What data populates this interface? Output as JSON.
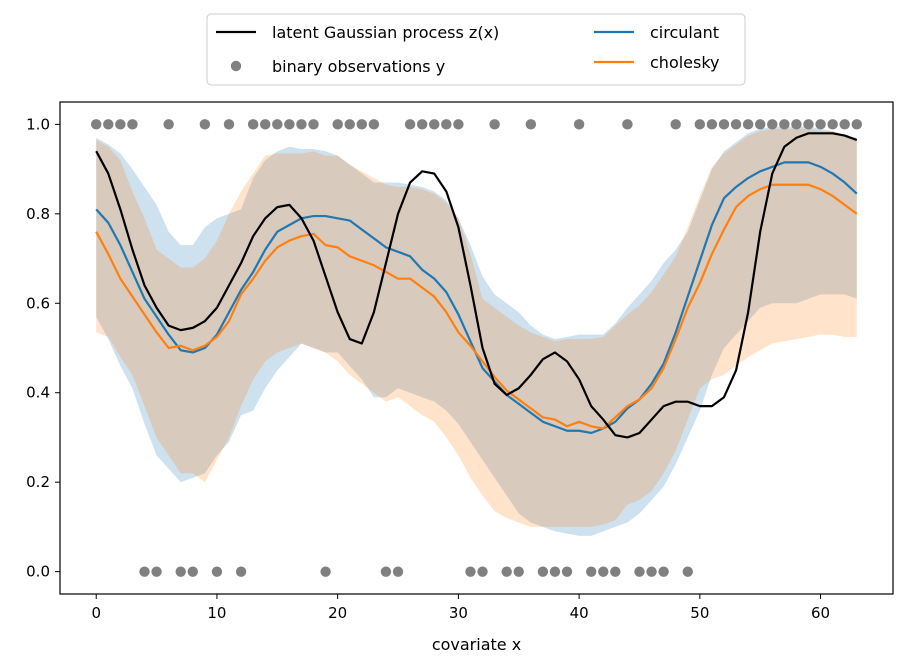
{
  "chart_data": {
    "type": "line",
    "xlabel": "covariate x",
    "ylabel": "",
    "xlim": [
      -3,
      66
    ],
    "ylim": [
      -0.05,
      1.05
    ],
    "xticks": [
      0,
      10,
      20,
      30,
      40,
      50,
      60
    ],
    "yticks": [
      0.0,
      0.2,
      0.4,
      0.6,
      0.8,
      1.0
    ],
    "xtick_labels": [
      "0",
      "10",
      "20",
      "30",
      "40",
      "50",
      "60"
    ],
    "ytick_labels": [
      "0.0",
      "0.2",
      "0.4",
      "0.6",
      "0.8",
      "1.0"
    ],
    "grid": false,
    "legend_position": "top-center",
    "legend": [
      {
        "label": "latent Gaussian process z(x)",
        "kind": "line",
        "series": "latent"
      },
      {
        "label": "binary observations y",
        "kind": "marker",
        "series": "observations"
      },
      {
        "label": "circulant",
        "kind": "line",
        "series": "circulant"
      },
      {
        "label": "cholesky",
        "kind": "line",
        "series": "cholesky"
      }
    ],
    "colors": {
      "latent": "#000000",
      "observations": "#808080",
      "circulant": "#1f77b4",
      "cholesky": "#ff7f0e",
      "circulant_band": "#1f77b4",
      "cholesky_band": "#ff7f0e"
    },
    "x": [
      0,
      1,
      2,
      3,
      4,
      5,
      6,
      7,
      8,
      9,
      10,
      11,
      12,
      13,
      14,
      15,
      16,
      17,
      18,
      19,
      20,
      21,
      22,
      23,
      24,
      25,
      26,
      27,
      28,
      29,
      30,
      31,
      32,
      33,
      34,
      35,
      36,
      37,
      38,
      39,
      40,
      41,
      42,
      43,
      44,
      45,
      46,
      47,
      48,
      49,
      50,
      51,
      52,
      53,
      54,
      55,
      56,
      57,
      58,
      59,
      60,
      61,
      62,
      63
    ],
    "latent": [
      0.94,
      0.89,
      0.81,
      0.72,
      0.64,
      0.59,
      0.55,
      0.54,
      0.545,
      0.56,
      0.59,
      0.64,
      0.69,
      0.75,
      0.79,
      0.815,
      0.82,
      0.79,
      0.74,
      0.66,
      0.58,
      0.52,
      0.51,
      0.58,
      0.69,
      0.8,
      0.87,
      0.895,
      0.89,
      0.85,
      0.77,
      0.64,
      0.5,
      0.42,
      0.395,
      0.41,
      0.44,
      0.475,
      0.49,
      0.47,
      0.43,
      0.37,
      0.34,
      0.305,
      0.3,
      0.31,
      0.34,
      0.37,
      0.38,
      0.38,
      0.37,
      0.37,
      0.39,
      0.45,
      0.58,
      0.76,
      0.89,
      0.95,
      0.97,
      0.98,
      0.98,
      0.98,
      0.975,
      0.965
    ],
    "circulant_mean": [
      0.81,
      0.78,
      0.73,
      0.67,
      0.61,
      0.57,
      0.53,
      0.495,
      0.49,
      0.5,
      0.53,
      0.58,
      0.63,
      0.67,
      0.72,
      0.76,
      0.775,
      0.79,
      0.795,
      0.795,
      0.79,
      0.785,
      0.765,
      0.745,
      0.725,
      0.715,
      0.705,
      0.675,
      0.655,
      0.625,
      0.575,
      0.515,
      0.455,
      0.425,
      0.395,
      0.375,
      0.355,
      0.335,
      0.325,
      0.315,
      0.315,
      0.31,
      0.32,
      0.335,
      0.365,
      0.385,
      0.42,
      0.465,
      0.535,
      0.615,
      0.695,
      0.775,
      0.835,
      0.86,
      0.88,
      0.895,
      0.905,
      0.915,
      0.915,
      0.915,
      0.905,
      0.89,
      0.87,
      0.845
    ],
    "circulant_upper": [
      0.97,
      0.955,
      0.935,
      0.9,
      0.86,
      0.82,
      0.76,
      0.73,
      0.73,
      0.77,
      0.79,
      0.8,
      0.81,
      0.88,
      0.92,
      0.94,
      0.95,
      0.945,
      0.945,
      0.94,
      0.93,
      0.91,
      0.89,
      0.87,
      0.87,
      0.87,
      0.865,
      0.86,
      0.85,
      0.83,
      0.79,
      0.73,
      0.66,
      0.62,
      0.6,
      0.58,
      0.55,
      0.53,
      0.52,
      0.525,
      0.53,
      0.53,
      0.53,
      0.555,
      0.59,
      0.62,
      0.65,
      0.69,
      0.72,
      0.76,
      0.83,
      0.9,
      0.94,
      0.96,
      0.98,
      0.99,
      0.995,
      0.995,
      0.995,
      0.995,
      0.99,
      0.985,
      0.975,
      0.97
    ],
    "circulant_lower": [
      0.57,
      0.52,
      0.46,
      0.41,
      0.33,
      0.26,
      0.23,
      0.2,
      0.21,
      0.22,
      0.26,
      0.29,
      0.35,
      0.36,
      0.41,
      0.45,
      0.48,
      0.51,
      0.5,
      0.49,
      0.49,
      0.46,
      0.43,
      0.39,
      0.39,
      0.41,
      0.4,
      0.39,
      0.38,
      0.36,
      0.33,
      0.29,
      0.25,
      0.21,
      0.17,
      0.13,
      0.11,
      0.1,
      0.09,
      0.085,
      0.08,
      0.08,
      0.09,
      0.1,
      0.11,
      0.13,
      0.16,
      0.19,
      0.24,
      0.3,
      0.36,
      0.44,
      0.5,
      0.53,
      0.56,
      0.59,
      0.6,
      0.6,
      0.6,
      0.61,
      0.62,
      0.62,
      0.62,
      0.61
    ],
    "cholesky_mean": [
      0.76,
      0.71,
      0.655,
      0.615,
      0.575,
      0.535,
      0.5,
      0.505,
      0.495,
      0.505,
      0.525,
      0.56,
      0.62,
      0.655,
      0.695,
      0.725,
      0.74,
      0.75,
      0.755,
      0.73,
      0.725,
      0.705,
      0.695,
      0.685,
      0.67,
      0.655,
      0.655,
      0.635,
      0.615,
      0.58,
      0.535,
      0.505,
      0.47,
      0.435,
      0.405,
      0.385,
      0.365,
      0.345,
      0.34,
      0.325,
      0.335,
      0.325,
      0.32,
      0.345,
      0.37,
      0.385,
      0.41,
      0.455,
      0.52,
      0.59,
      0.645,
      0.71,
      0.765,
      0.815,
      0.84,
      0.855,
      0.865,
      0.865,
      0.865,
      0.865,
      0.855,
      0.84,
      0.82,
      0.8
    ],
    "cholesky_upper": [
      0.965,
      0.95,
      0.92,
      0.85,
      0.79,
      0.72,
      0.7,
      0.68,
      0.68,
      0.7,
      0.74,
      0.8,
      0.85,
      0.89,
      0.93,
      0.935,
      0.935,
      0.935,
      0.94,
      0.93,
      0.93,
      0.91,
      0.895,
      0.88,
      0.865,
      0.86,
      0.86,
      0.855,
      0.845,
      0.825,
      0.79,
      0.71,
      0.61,
      0.59,
      0.57,
      0.55,
      0.535,
      0.525,
      0.515,
      0.52,
      0.52,
      0.52,
      0.525,
      0.55,
      0.575,
      0.595,
      0.625,
      0.665,
      0.705,
      0.77,
      0.84,
      0.905,
      0.935,
      0.955,
      0.975,
      0.985,
      0.99,
      0.99,
      0.99,
      0.99,
      0.985,
      0.985,
      0.975,
      0.97
    ],
    "cholesky_lower": [
      0.535,
      0.525,
      0.48,
      0.44,
      0.37,
      0.3,
      0.26,
      0.22,
      0.22,
      0.2,
      0.25,
      0.3,
      0.37,
      0.43,
      0.47,
      0.49,
      0.5,
      0.51,
      0.5,
      0.49,
      0.47,
      0.44,
      0.42,
      0.4,
      0.38,
      0.39,
      0.37,
      0.35,
      0.335,
      0.3,
      0.26,
      0.21,
      0.17,
      0.135,
      0.12,
      0.11,
      0.1,
      0.1,
      0.1,
      0.1,
      0.1,
      0.1,
      0.105,
      0.115,
      0.15,
      0.16,
      0.18,
      0.22,
      0.27,
      0.34,
      0.41,
      0.43,
      0.44,
      0.46,
      0.48,
      0.495,
      0.51,
      0.515,
      0.52,
      0.525,
      0.53,
      0.53,
      0.525,
      0.525
    ],
    "observations_x": [
      0,
      1,
      2,
      3,
      4,
      5,
      6,
      7,
      8,
      9,
      10,
      11,
      12,
      13,
      14,
      15,
      16,
      17,
      18,
      19,
      20,
      21,
      22,
      23,
      24,
      25,
      26,
      27,
      28,
      29,
      30,
      31,
      32,
      33,
      34,
      35,
      36,
      37,
      38,
      39,
      40,
      41,
      42,
      43,
      44,
      45,
      46,
      47,
      48,
      49,
      50,
      51,
      52,
      53,
      54,
      55,
      56,
      57,
      58,
      59,
      60,
      61,
      62,
      63
    ],
    "observations_y": [
      1,
      1,
      1,
      1,
      0,
      0,
      1,
      0,
      0,
      1,
      0,
      1,
      0,
      1,
      1,
      1,
      1,
      1,
      1,
      0,
      1,
      1,
      1,
      1,
      0,
      0,
      1,
      1,
      1,
      1,
      1,
      0,
      0,
      1,
      0,
      0,
      1,
      0,
      0,
      0,
      1,
      0,
      0,
      0,
      1,
      0,
      0,
      0,
      1,
      0,
      1,
      1,
      1,
      1,
      1,
      1,
      1,
      1,
      1,
      1,
      1,
      1,
      1,
      1
    ]
  }
}
